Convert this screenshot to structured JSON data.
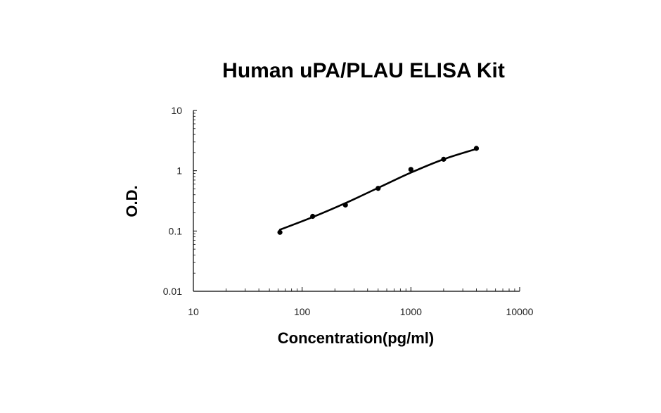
{
  "chart_data": {
    "type": "scatter",
    "title": "Human uPA/PLAU ELISA Kit",
    "xlabel": "Concentration(pg/ml)",
    "ylabel": "O.D.",
    "xscale": "log",
    "yscale": "log",
    "xlim": [
      10,
      10000
    ],
    "ylim": [
      0.01,
      10
    ],
    "xticks": [
      "10",
      "100",
      "1000",
      "10000"
    ],
    "yticks": [
      "10",
      "1",
      "0.1",
      "0.01"
    ],
    "grid": false,
    "legend": "none",
    "series": [
      {
        "points": {
          "x": [
            62.5,
            125,
            250,
            500,
            1000,
            2000,
            4000
          ],
          "y": [
            0.095,
            0.175,
            0.27,
            0.51,
            1.05,
            1.55,
            2.35
          ]
        },
        "fit_curve": {
          "x": [
            62.5,
            125,
            250,
            500,
            1000,
            2000,
            4000
          ],
          "y": [
            0.105,
            0.17,
            0.29,
            0.52,
            0.93,
            1.55,
            2.3
          ]
        }
      }
    ],
    "colors": {
      "marker": "#000000",
      "line": "#000000",
      "axis": "#000000"
    }
  }
}
